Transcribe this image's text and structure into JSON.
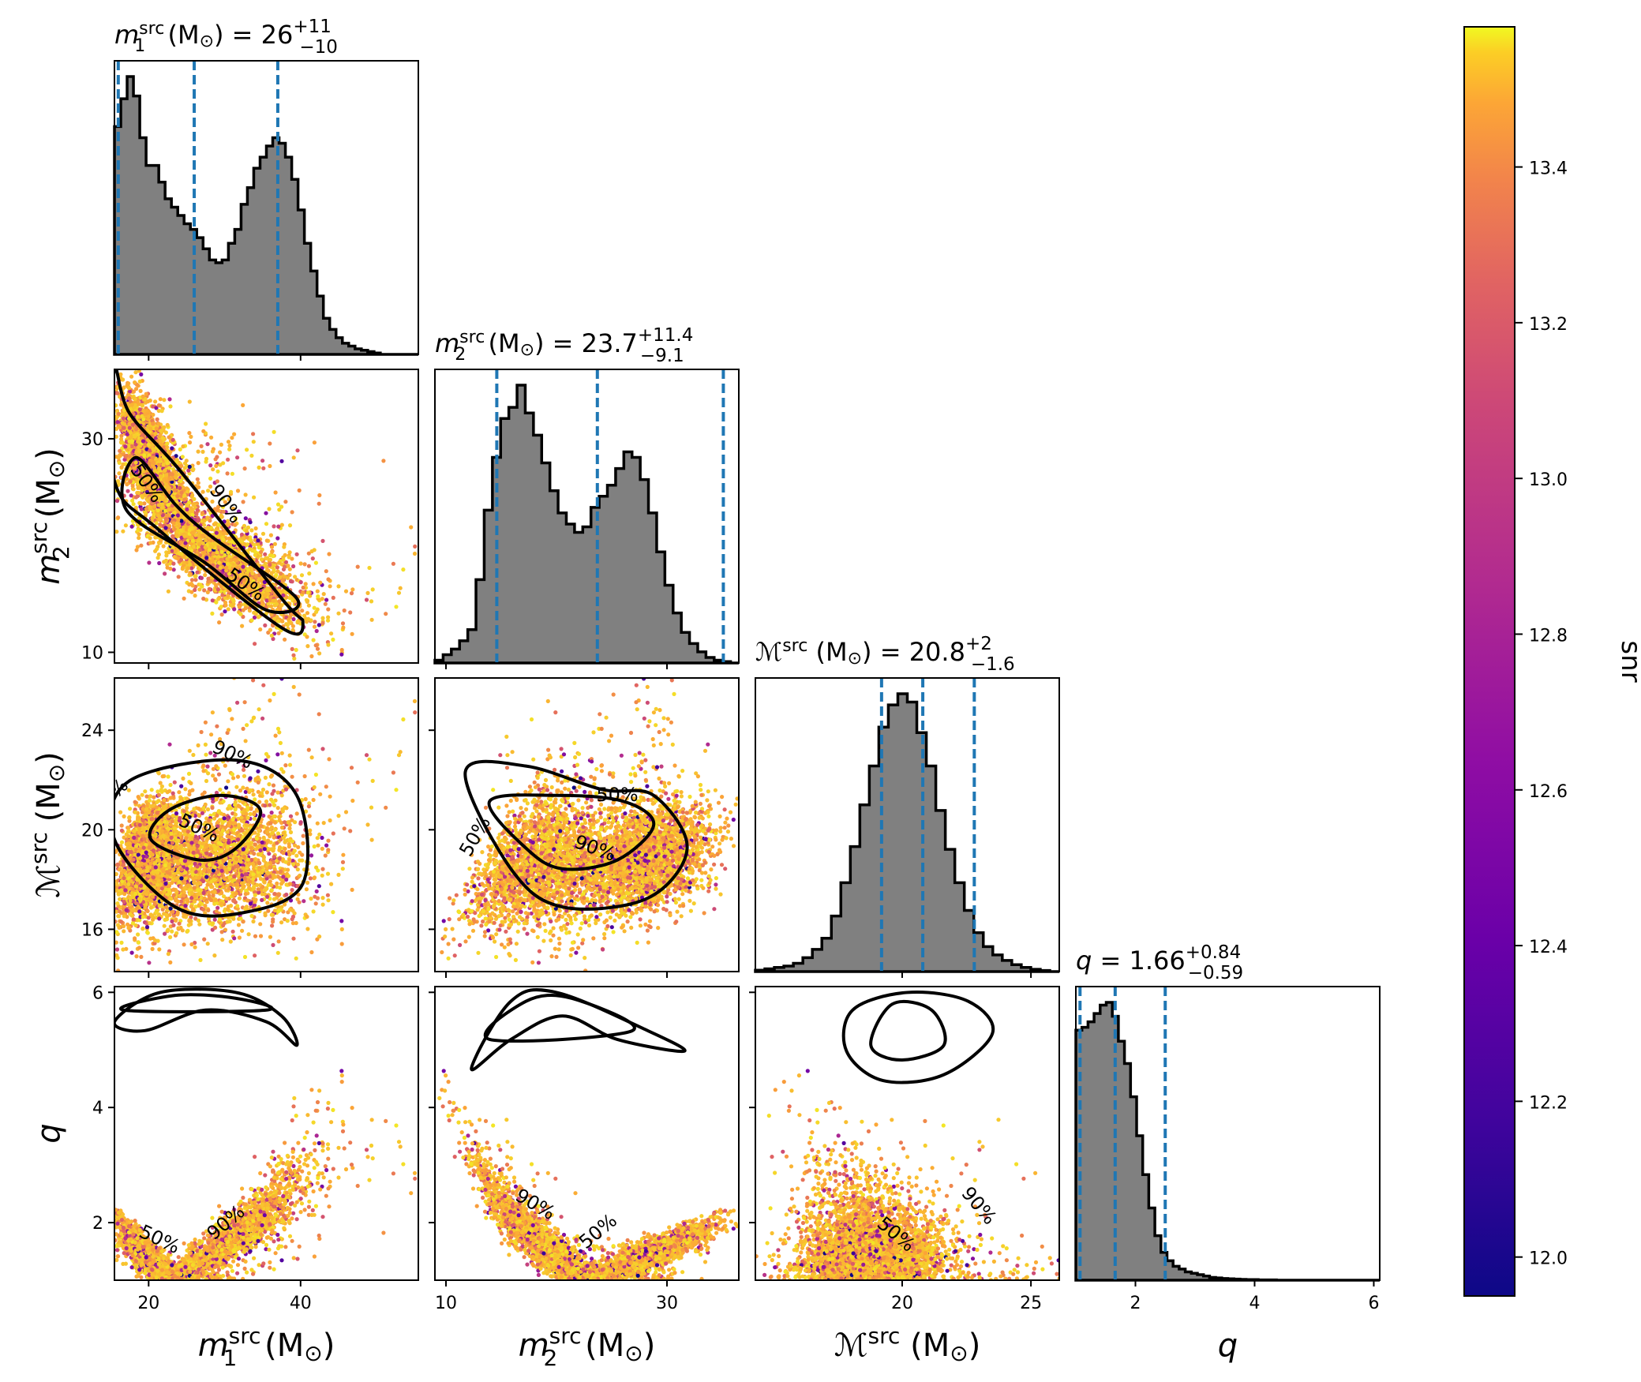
{
  "chart_data": {
    "type": "scatter",
    "parameters": [
      {
        "key": "m1",
        "axis_label": {
          "sym": "m",
          "sup": "src",
          "sub": "1",
          "unit": " (M",
          "sun": "⊙",
          "close": ")"
        },
        "title": {
          "text": "m1src (M⊙) = 26",
          "value": "26",
          "plus": "+11",
          "minus": "−10"
        },
        "range": [
          15.5,
          55.5
        ],
        "ticks": [
          20,
          40
        ],
        "median": 26,
        "lower": 16,
        "upper": 37
      },
      {
        "key": "m2",
        "axis_label": {
          "sym": "m",
          "sup": "src",
          "sub": "2",
          "unit": " (M",
          "sun": "⊙",
          "close": ")"
        },
        "title": {
          "text": "m2src (M⊙) = 23.7",
          "value": "23.7",
          "plus": "+11.4",
          "minus": "−9.1"
        },
        "range": [
          9,
          36.5
        ],
        "ticks": [
          10,
          30
        ],
        "median": 23.7,
        "lower": 14.6,
        "upper": 35.1
      },
      {
        "key": "Mc",
        "axis_label": {
          "sym": "ℳ",
          "sup": "src",
          "sub": "",
          "unit": " (M",
          "sun": "⊙",
          "close": ")"
        },
        "title": {
          "text": "ℳsrc (M⊙) = 20.8",
          "value": "20.8",
          "plus": "+2",
          "minus": "−1.6"
        },
        "range": [
          14.3,
          26.1
        ],
        "ticks": [
          20,
          25
        ],
        "ticks_y": [
          16,
          20,
          24
        ],
        "median": 20.8,
        "lower": 19.2,
        "upper": 22.8
      },
      {
        "key": "q",
        "axis_label": {
          "sym": "q",
          "sup": "",
          "sub": "",
          "unit": "",
          "sun": "",
          "close": ""
        },
        "title": {
          "text": "q = 1.66",
          "value": "1.66",
          "plus": "+0.84",
          "minus": "−0.59"
        },
        "range": [
          1.0,
          6.1
        ],
        "ticks": [
          2,
          4,
          6
        ],
        "median": 1.66,
        "lower": 1.07,
        "upper": 2.5
      }
    ],
    "title_prefix": {
      "m_eq": " (M",
      "sun": "⊙",
      "close": ") = ",
      "q_eq": " = "
    },
    "contour_levels": [
      "50%",
      "90%"
    ],
    "colorbar": {
      "label": "snr",
      "range": [
        11.95,
        13.58
      ],
      "ticks": [
        "12.0",
        "12.2",
        "12.4",
        "12.6",
        "12.8",
        "13.0",
        "13.2",
        "13.4"
      ],
      "colormap": "plasma"
    },
    "histogram_color": "#808080",
    "quantile_line_color": "#1f77b4",
    "grid": false
  }
}
